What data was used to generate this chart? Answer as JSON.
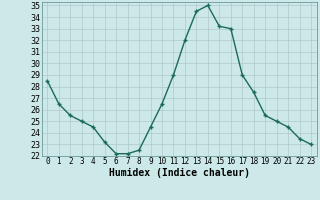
{
  "x": [
    0,
    1,
    2,
    3,
    4,
    5,
    6,
    7,
    8,
    9,
    10,
    11,
    12,
    13,
    14,
    15,
    16,
    17,
    18,
    19,
    20,
    21,
    22,
    23
  ],
  "y": [
    28.5,
    26.5,
    25.5,
    25.0,
    24.5,
    23.2,
    22.2,
    22.2,
    22.5,
    24.5,
    26.5,
    29.0,
    32.0,
    34.5,
    35.0,
    33.2,
    33.0,
    29.0,
    27.5,
    25.5,
    25.0,
    24.5,
    23.5,
    23.0
  ],
  "xlabel": "Humidex (Indice chaleur)",
  "xlim": [
    -0.5,
    23.5
  ],
  "ylim": [
    22,
    35.3
  ],
  "yticks": [
    22,
    23,
    24,
    25,
    26,
    27,
    28,
    29,
    30,
    31,
    32,
    33,
    34,
    35
  ],
  "xticks": [
    0,
    1,
    2,
    3,
    4,
    5,
    6,
    7,
    8,
    9,
    10,
    11,
    12,
    13,
    14,
    15,
    16,
    17,
    18,
    19,
    20,
    21,
    22,
    23
  ],
  "line_color": "#1a6b5a",
  "marker": "+",
  "bg_color": "#cce8e8",
  "grid_color": "#b0c8c8",
  "xlabel_fontsize": 7,
  "tick_fontsize": 5.5,
  "ytick_fontsize": 6
}
